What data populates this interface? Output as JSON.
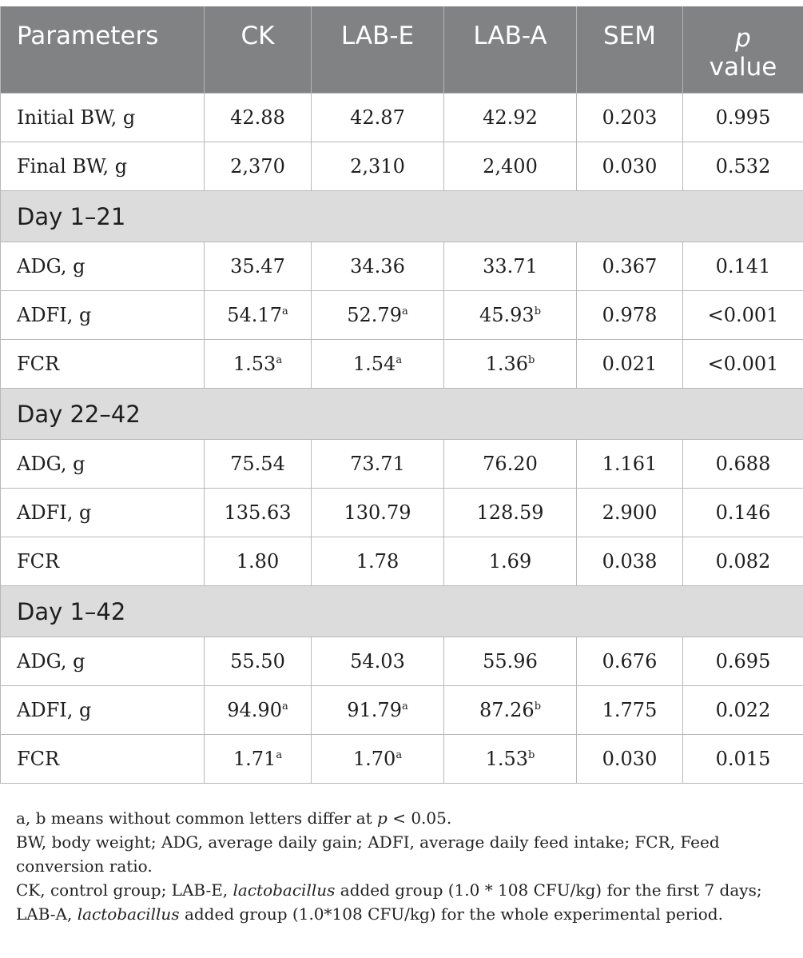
{
  "table": {
    "header": {
      "parameters": "Parameters",
      "ck": "CK",
      "lab_e": "LAB-E",
      "lab_a": "LAB-A",
      "sem": "SEM",
      "p_italic": "p",
      "p_rest": "value"
    },
    "rows": {
      "initial_bw": {
        "label": "Initial BW, g",
        "ck": "42.88",
        "ck_sup": "",
        "lab_e": "42.87",
        "lab_e_sup": "",
        "lab_a": "42.92",
        "lab_a_sup": "",
        "sem": "0.203",
        "p": "0.995"
      },
      "final_bw": {
        "label": "Final BW, g",
        "ck": "2,370",
        "ck_sup": "",
        "lab_e": "2,310",
        "lab_e_sup": "",
        "lab_a": "2,400",
        "lab_a_sup": "",
        "sem": "0.030",
        "p": "0.532"
      }
    },
    "sections": [
      {
        "title": "Day 1–21",
        "rows": [
          {
            "label": "ADG, g",
            "ck": "35.47",
            "ck_sup": "",
            "lab_e": "34.36",
            "lab_e_sup": "",
            "lab_a": "33.71",
            "lab_a_sup": "",
            "sem": "0.367",
            "p": "0.141"
          },
          {
            "label": "ADFI, g",
            "ck": "54.17",
            "ck_sup": "a",
            "lab_e": "52.79",
            "lab_e_sup": "a",
            "lab_a": "45.93",
            "lab_a_sup": "b",
            "sem": "0.978",
            "p": "<0.001"
          },
          {
            "label": "FCR",
            "ck": "1.53",
            "ck_sup": "a",
            "lab_e": "1.54",
            "lab_e_sup": "a",
            "lab_a": "1.36",
            "lab_a_sup": "b",
            "sem": "0.021",
            "p": "<0.001"
          }
        ]
      },
      {
        "title": "Day 22–42",
        "rows": [
          {
            "label": "ADG, g",
            "ck": "75.54",
            "ck_sup": "",
            "lab_e": "73.71",
            "lab_e_sup": "",
            "lab_a": "76.20",
            "lab_a_sup": "",
            "sem": "1.161",
            "p": "0.688"
          },
          {
            "label": "ADFI, g",
            "ck": "135.63",
            "ck_sup": "",
            "lab_e": "130.79",
            "lab_e_sup": "",
            "lab_a": "128.59",
            "lab_a_sup": "",
            "sem": "2.900",
            "p": "0.146"
          },
          {
            "label": "FCR",
            "ck": "1.80",
            "ck_sup": "",
            "lab_e": "1.78",
            "lab_e_sup": "",
            "lab_a": "1.69",
            "lab_a_sup": "",
            "sem": "0.038",
            "p": "0.082"
          }
        ]
      },
      {
        "title": "Day 1–42",
        "rows": [
          {
            "label": "ADG, g",
            "ck": "55.50",
            "ck_sup": "",
            "lab_e": "54.03",
            "lab_e_sup": "",
            "lab_a": "55.96",
            "lab_a_sup": "",
            "sem": "0.676",
            "p": "0.695"
          },
          {
            "label": "ADFI, g",
            "ck": "94.90",
            "ck_sup": "a",
            "lab_e": "91.79",
            "lab_e_sup": "a",
            "lab_a": "87.26",
            "lab_a_sup": "b",
            "sem": "1.775",
            "p": "0.022"
          },
          {
            "label": "FCR",
            "ck": "1.71",
            "ck_sup": "a",
            "lab_e": "1.70",
            "lab_e_sup": "a",
            "lab_a": "1.53",
            "lab_a_sup": "b",
            "sem": "0.030",
            "p": "0.015"
          }
        ]
      }
    ]
  },
  "notes": {
    "line1": {
      "before": "a, b means without common letters differ at ",
      "italic": "p",
      "after": " < 0.05."
    },
    "line2": "BW, body weight; ADG, average daily gain; ADFI, average daily feed intake; FCR, Feed conversion ratio.",
    "line3": {
      "a": "CK, control group; LAB-E, ",
      "b": "lactobacillus",
      "c": " added group (1.0 * 108 CFU/kg) for the first 7 days; LAB-A, ",
      "d": "lactobacillus",
      "e": " added group (1.0*108 CFU/kg) for the whole experimental period."
    }
  }
}
